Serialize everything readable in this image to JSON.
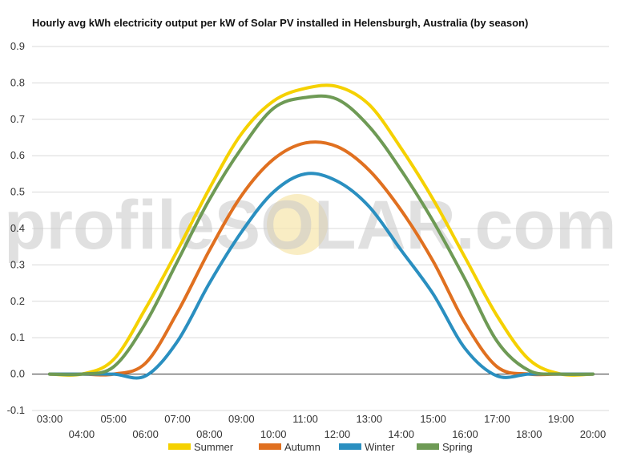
{
  "watermark": "profileSOLAR.com",
  "chart_data": {
    "type": "line",
    "title": "Hourly avg kWh electricity output per kW of Solar PV installed in Helensburgh, Australia (by season)",
    "xlabel": "",
    "ylabel": "",
    "ylim": [
      -0.1,
      0.9
    ],
    "yticks": [
      "-0.1",
      "0.0",
      "0.1",
      "0.2",
      "0.3",
      "0.4",
      "0.5",
      "0.6",
      "0.7",
      "0.8",
      "0.9"
    ],
    "categories": [
      "03:00",
      "04:00",
      "05:00",
      "06:00",
      "07:00",
      "08:00",
      "09:00",
      "10:00",
      "11:00",
      "12:00",
      "13:00",
      "14:00",
      "15:00",
      "16:00",
      "17:00",
      "18:00",
      "19:00",
      "20:00"
    ],
    "grid": true,
    "legend_position": "bottom",
    "series": [
      {
        "name": "Summer",
        "color": "#f5d100",
        "values": [
          0.0,
          0.0,
          0.04,
          0.18,
          0.34,
          0.51,
          0.66,
          0.75,
          0.785,
          0.79,
          0.74,
          0.62,
          0.48,
          0.32,
          0.16,
          0.04,
          0.0,
          0.0
        ]
      },
      {
        "name": "Autumn",
        "color": "#e07020",
        "values": [
          0.0,
          0.0,
          0.0,
          0.03,
          0.17,
          0.34,
          0.49,
          0.59,
          0.635,
          0.625,
          0.56,
          0.45,
          0.31,
          0.14,
          0.02,
          0.0,
          0.0,
          0.0
        ]
      },
      {
        "name": "Winter",
        "color": "#2a8fc0",
        "values": [
          0.0,
          0.0,
          0.0,
          -0.005,
          0.09,
          0.25,
          0.39,
          0.5,
          0.55,
          0.53,
          0.46,
          0.34,
          0.22,
          0.07,
          -0.005,
          0.0,
          0.0,
          0.0
        ]
      },
      {
        "name": "Spring",
        "color": "#6e9a55",
        "values": [
          0.0,
          0.0,
          0.02,
          0.14,
          0.31,
          0.48,
          0.62,
          0.73,
          0.76,
          0.755,
          0.68,
          0.56,
          0.42,
          0.26,
          0.09,
          0.01,
          0.0,
          0.0
        ]
      }
    ]
  }
}
